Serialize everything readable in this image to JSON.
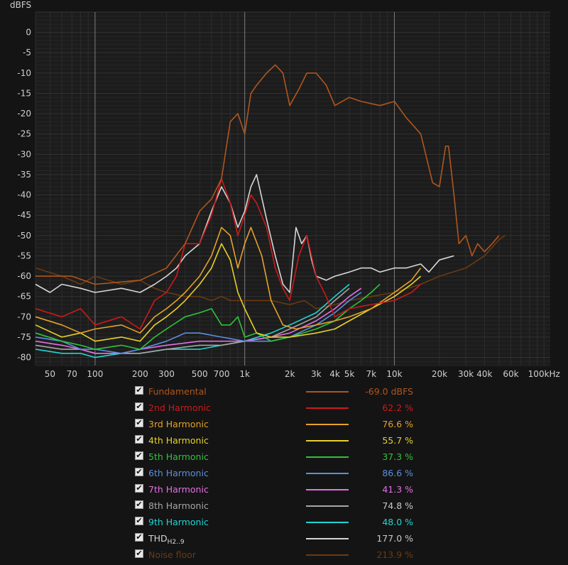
{
  "colors": {
    "background": "#141414",
    "plot_background": "#1c1c1c",
    "grid": "#2e2e2e",
    "grid_major": "#7a7a7a",
    "text": "#cfcfcf"
  },
  "chart_data": {
    "type": "line",
    "ylabel": "dBFS",
    "xscale": "log",
    "xlim": [
      40,
      110000
    ],
    "ylim": [
      -82,
      5
    ],
    "grid": true,
    "x_tick_labels": [
      {
        "v": 50,
        "label": "50"
      },
      {
        "v": 70,
        "label": "70"
      },
      {
        "v": 100,
        "label": "100"
      },
      {
        "v": 200,
        "label": "200"
      },
      {
        "v": 300,
        "label": "300"
      },
      {
        "v": 500,
        "label": "500"
      },
      {
        "v": 700,
        "label": "700"
      },
      {
        "v": 1000,
        "label": "1k"
      },
      {
        "v": 2000,
        "label": "2k"
      },
      {
        "v": 3000,
        "label": "3k"
      },
      {
        "v": 4000,
        "label": "4k"
      },
      {
        "v": 5000,
        "label": "5k"
      },
      {
        "v": 7000,
        "label": "7k"
      },
      {
        "v": 10000,
        "label": "10k"
      },
      {
        "v": 20000,
        "label": "20k"
      },
      {
        "v": 30000,
        "label": "30k"
      },
      {
        "v": 40000,
        "label": "40k"
      },
      {
        "v": 60000,
        "label": "60k"
      },
      {
        "v": 100000,
        "label": "100kHz"
      }
    ],
    "y_ticks": [
      0,
      -5,
      -10,
      -15,
      -20,
      -25,
      -30,
      -35,
      -40,
      -45,
      -50,
      -55,
      -60,
      -65,
      -70,
      -75,
      -80
    ],
    "series": [
      {
        "name": "Fundamental",
        "color": "#b0561e",
        "value": "-69.0 dBFS",
        "points": [
          [
            40,
            -60
          ],
          [
            70,
            -60
          ],
          [
            100,
            -62
          ],
          [
            200,
            -61
          ],
          [
            300,
            -58
          ],
          [
            400,
            -52
          ],
          [
            500,
            -44
          ],
          [
            600,
            -41
          ],
          [
            700,
            -36
          ],
          [
            800,
            -22
          ],
          [
            900,
            -20
          ],
          [
            1000,
            -25
          ],
          [
            1100,
            -15
          ],
          [
            1200,
            -13
          ],
          [
            1400,
            -10
          ],
          [
            1600,
            -8
          ],
          [
            1800,
            -10
          ],
          [
            2000,
            -18
          ],
          [
            2300,
            -14
          ],
          [
            2600,
            -10
          ],
          [
            3000,
            -10
          ],
          [
            3500,
            -13
          ],
          [
            4000,
            -18
          ],
          [
            5000,
            -16
          ],
          [
            6000,
            -17
          ],
          [
            8000,
            -18
          ],
          [
            10000,
            -17
          ],
          [
            12000,
            -21
          ],
          [
            15000,
            -25
          ],
          [
            18000,
            -37
          ],
          [
            20000,
            -38
          ],
          [
            22000,
            -28
          ],
          [
            23000,
            -28
          ],
          [
            25000,
            -40
          ],
          [
            27000,
            -52
          ],
          [
            30000,
            -50
          ],
          [
            33000,
            -55
          ],
          [
            36000,
            -52
          ],
          [
            40000,
            -54
          ],
          [
            45000,
            -52
          ],
          [
            50000,
            -50
          ]
        ]
      },
      {
        "name": "2nd Harmonic",
        "color": "#cc1a1a",
        "value": "62.2 %",
        "points": [
          [
            40,
            -68
          ],
          [
            60,
            -70
          ],
          [
            80,
            -68
          ],
          [
            100,
            -72
          ],
          [
            150,
            -70
          ],
          [
            200,
            -73
          ],
          [
            250,
            -66
          ],
          [
            300,
            -64
          ],
          [
            350,
            -60
          ],
          [
            400,
            -52
          ],
          [
            500,
            -52
          ],
          [
            600,
            -45
          ],
          [
            700,
            -36
          ],
          [
            800,
            -42
          ],
          [
            900,
            -50
          ],
          [
            1000,
            -45
          ],
          [
            1100,
            -40
          ],
          [
            1200,
            -42
          ],
          [
            1400,
            -48
          ],
          [
            1600,
            -58
          ],
          [
            1800,
            -63
          ],
          [
            2000,
            -66
          ],
          [
            2300,
            -55
          ],
          [
            2600,
            -50
          ],
          [
            3000,
            -60
          ],
          [
            3500,
            -65
          ],
          [
            4000,
            -70
          ],
          [
            5000,
            -68
          ],
          [
            7000,
            -67
          ],
          [
            10000,
            -66
          ],
          [
            13000,
            -64
          ],
          [
            15000,
            -62
          ]
        ]
      },
      {
        "name": "3rd Harmonic",
        "color": "#e6a22a",
        "value": "76.6 %",
        "points": [
          [
            40,
            -70
          ],
          [
            60,
            -72
          ],
          [
            80,
            -74
          ],
          [
            100,
            -73
          ],
          [
            150,
            -72
          ],
          [
            200,
            -74
          ],
          [
            250,
            -70
          ],
          [
            300,
            -68
          ],
          [
            350,
            -66
          ],
          [
            400,
            -64
          ],
          [
            500,
            -60
          ],
          [
            600,
            -55
          ],
          [
            700,
            -48
          ],
          [
            800,
            -50
          ],
          [
            900,
            -58
          ],
          [
            1000,
            -52
          ],
          [
            1100,
            -48
          ],
          [
            1300,
            -55
          ],
          [
            1500,
            -66
          ],
          [
            1800,
            -72
          ],
          [
            2200,
            -73
          ],
          [
            3000,
            -72
          ],
          [
            4000,
            -71
          ],
          [
            5000,
            -70
          ],
          [
            7000,
            -68
          ],
          [
            10000,
            -64
          ],
          [
            13000,
            -61
          ],
          [
            15000,
            -58
          ]
        ]
      },
      {
        "name": "4th Harmonic",
        "color": "#e6d12a",
        "value": "55.7 %",
        "points": [
          [
            40,
            -72
          ],
          [
            60,
            -75
          ],
          [
            80,
            -74
          ],
          [
            100,
            -76
          ],
          [
            150,
            -75
          ],
          [
            200,
            -76
          ],
          [
            250,
            -72
          ],
          [
            300,
            -70
          ],
          [
            350,
            -68
          ],
          [
            400,
            -66
          ],
          [
            500,
            -62
          ],
          [
            600,
            -58
          ],
          [
            700,
            -52
          ],
          [
            800,
            -56
          ],
          [
            900,
            -64
          ],
          [
            1000,
            -68
          ],
          [
            1200,
            -74
          ],
          [
            1500,
            -75
          ],
          [
            2000,
            -75
          ],
          [
            3000,
            -74
          ],
          [
            4000,
            -73
          ],
          [
            5000,
            -71
          ],
          [
            7000,
            -68
          ],
          [
            10000,
            -65
          ],
          [
            13000,
            -62
          ],
          [
            15000,
            -60
          ]
        ]
      },
      {
        "name": "5th Harmonic",
        "color": "#2ec43a",
        "value": "37.3 %",
        "points": [
          [
            40,
            -74
          ],
          [
            60,
            -76
          ],
          [
            80,
            -77
          ],
          [
            100,
            -78
          ],
          [
            150,
            -77
          ],
          [
            200,
            -78
          ],
          [
            250,
            -75
          ],
          [
            300,
            -73
          ],
          [
            400,
            -70
          ],
          [
            500,
            -69
          ],
          [
            600,
            -68
          ],
          [
            700,
            -72
          ],
          [
            800,
            -72
          ],
          [
            900,
            -70
          ],
          [
            1000,
            -75
          ],
          [
            1200,
            -74
          ],
          [
            1500,
            -76
          ],
          [
            2000,
            -75
          ],
          [
            3000,
            -73
          ],
          [
            4000,
            -71
          ],
          [
            5000,
            -68
          ],
          [
            6000,
            -66
          ],
          [
            7000,
            -64
          ],
          [
            8000,
            -62
          ]
        ]
      },
      {
        "name": "6th Harmonic",
        "color": "#5b8fe0",
        "value": "86.6 %",
        "points": [
          [
            40,
            -75
          ],
          [
            60,
            -76
          ],
          [
            80,
            -78
          ],
          [
            100,
            -78
          ],
          [
            150,
            -79
          ],
          [
            200,
            -78
          ],
          [
            300,
            -76
          ],
          [
            400,
            -74
          ],
          [
            500,
            -74
          ],
          [
            700,
            -75
          ],
          [
            1000,
            -76
          ],
          [
            1500,
            -76
          ],
          [
            2000,
            -75
          ],
          [
            3000,
            -72
          ],
          [
            4000,
            -69
          ],
          [
            5000,
            -66
          ],
          [
            6000,
            -64
          ]
        ]
      },
      {
        "name": "7th Harmonic",
        "color": "#e46fe6",
        "value": "41.3 %",
        "points": [
          [
            40,
            -76
          ],
          [
            60,
            -77
          ],
          [
            80,
            -78
          ],
          [
            100,
            -79
          ],
          [
            150,
            -79
          ],
          [
            200,
            -78
          ],
          [
            300,
            -77
          ],
          [
            500,
            -76
          ],
          [
            700,
            -76
          ],
          [
            1000,
            -76
          ],
          [
            1500,
            -75
          ],
          [
            2000,
            -74
          ],
          [
            3000,
            -71
          ],
          [
            4000,
            -68
          ],
          [
            5000,
            -65
          ],
          [
            6000,
            -63
          ]
        ]
      },
      {
        "name": "8th Harmonic",
        "color": "#a6a6a6",
        "value": "74.8 %",
        "points": [
          [
            40,
            -77
          ],
          [
            60,
            -78
          ],
          [
            80,
            -78
          ],
          [
            100,
            -79
          ],
          [
            150,
            -79
          ],
          [
            200,
            -79
          ],
          [
            300,
            -78
          ],
          [
            500,
            -77
          ],
          [
            700,
            -77
          ],
          [
            1000,
            -76
          ],
          [
            1500,
            -75
          ],
          [
            2000,
            -73
          ],
          [
            3000,
            -70
          ],
          [
            4000,
            -66
          ],
          [
            5000,
            -63
          ]
        ]
      },
      {
        "name": "9th Harmonic",
        "color": "#22d4d4",
        "value": "48.0 %",
        "points": [
          [
            40,
            -78
          ],
          [
            60,
            -79
          ],
          [
            80,
            -79
          ],
          [
            100,
            -80
          ],
          [
            150,
            -79
          ],
          [
            200,
            -79
          ],
          [
            300,
            -78
          ],
          [
            500,
            -78
          ],
          [
            700,
            -77
          ],
          [
            1000,
            -76
          ],
          [
            1500,
            -74
          ],
          [
            2000,
            -72
          ],
          [
            3000,
            -69
          ],
          [
            4000,
            -65
          ],
          [
            5000,
            -62
          ]
        ]
      },
      {
        "name": "THD",
        "name_sub": "H2..9",
        "color": "#d6d6d6",
        "value": "177.0 %",
        "points": [
          [
            40,
            -62
          ],
          [
            50,
            -64
          ],
          [
            60,
            -62
          ],
          [
            80,
            -63
          ],
          [
            100,
            -64
          ],
          [
            150,
            -63
          ],
          [
            200,
            -64
          ],
          [
            250,
            -62
          ],
          [
            300,
            -60
          ],
          [
            350,
            -58
          ],
          [
            400,
            -55
          ],
          [
            500,
            -52
          ],
          [
            600,
            -44
          ],
          [
            700,
            -38
          ],
          [
            800,
            -42
          ],
          [
            900,
            -48
          ],
          [
            1000,
            -44
          ],
          [
            1100,
            -38
          ],
          [
            1200,
            -35
          ],
          [
            1400,
            -46
          ],
          [
            1600,
            -55
          ],
          [
            1800,
            -62
          ],
          [
            2000,
            -64
          ],
          [
            2200,
            -48
          ],
          [
            2400,
            -52
          ],
          [
            2600,
            -50
          ],
          [
            2800,
            -56
          ],
          [
            3000,
            -60
          ],
          [
            3500,
            -61
          ],
          [
            4000,
            -60
          ],
          [
            5000,
            -59
          ],
          [
            6000,
            -58
          ],
          [
            7000,
            -58
          ],
          [
            8000,
            -59
          ],
          [
            10000,
            -58
          ],
          [
            12000,
            -58
          ],
          [
            15000,
            -57
          ],
          [
            17000,
            -59
          ],
          [
            20000,
            -56
          ],
          [
            25000,
            -55
          ]
        ]
      },
      {
        "name": "Noise floor",
        "color": "#6a3a14",
        "value": "213.9 %",
        "points": [
          [
            40,
            -58
          ],
          [
            60,
            -60
          ],
          [
            80,
            -62
          ],
          [
            100,
            -60
          ],
          [
            150,
            -62
          ],
          [
            200,
            -61
          ],
          [
            250,
            -63
          ],
          [
            300,
            -64
          ],
          [
            400,
            -65
          ],
          [
            500,
            -65
          ],
          [
            600,
            -66
          ],
          [
            700,
            -65
          ],
          [
            800,
            -66
          ],
          [
            1000,
            -66
          ],
          [
            1500,
            -66
          ],
          [
            2000,
            -67
          ],
          [
            2500,
            -66
          ],
          [
            3000,
            -68
          ],
          [
            4000,
            -67
          ],
          [
            5000,
            -66
          ],
          [
            7000,
            -65
          ],
          [
            10000,
            -64
          ],
          [
            15000,
            -62
          ],
          [
            20000,
            -60
          ],
          [
            30000,
            -58
          ],
          [
            40000,
            -55
          ],
          [
            50000,
            -51
          ],
          [
            55000,
            -50
          ]
        ]
      }
    ]
  }
}
